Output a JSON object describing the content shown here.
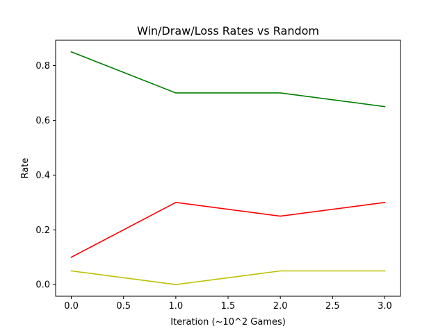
{
  "chart_data": {
    "type": "line",
    "title": "Win/Draw/Loss Rates vs Random",
    "xlabel": "Iteration (~10^2 Games)",
    "ylabel": "Rate",
    "x": [
      0,
      1,
      2,
      3
    ],
    "xlim": [
      -0.15,
      3.15
    ],
    "ylim": [
      -0.0425,
      0.8925
    ],
    "xticks": [
      0.0,
      0.5,
      1.0,
      1.5,
      2.0,
      2.5,
      3.0
    ],
    "xtick_labels": [
      "0.0",
      "0.5",
      "1.0",
      "1.5",
      "2.0",
      "2.5",
      "3.0"
    ],
    "yticks": [
      0.0,
      0.2,
      0.4,
      0.6,
      0.8
    ],
    "ytick_labels": [
      "0.0",
      "0.2",
      "0.4",
      "0.6",
      "0.8"
    ],
    "grid": false,
    "series": [
      {
        "color": "#008000",
        "values": [
          0.85,
          0.7,
          0.7,
          0.65
        ]
      },
      {
        "color": "#ff0000",
        "values": [
          0.1,
          0.3,
          0.25,
          0.3
        ]
      },
      {
        "color": "#bfbf00",
        "values": [
          0.05,
          0.0,
          0.05,
          0.05
        ]
      }
    ]
  }
}
